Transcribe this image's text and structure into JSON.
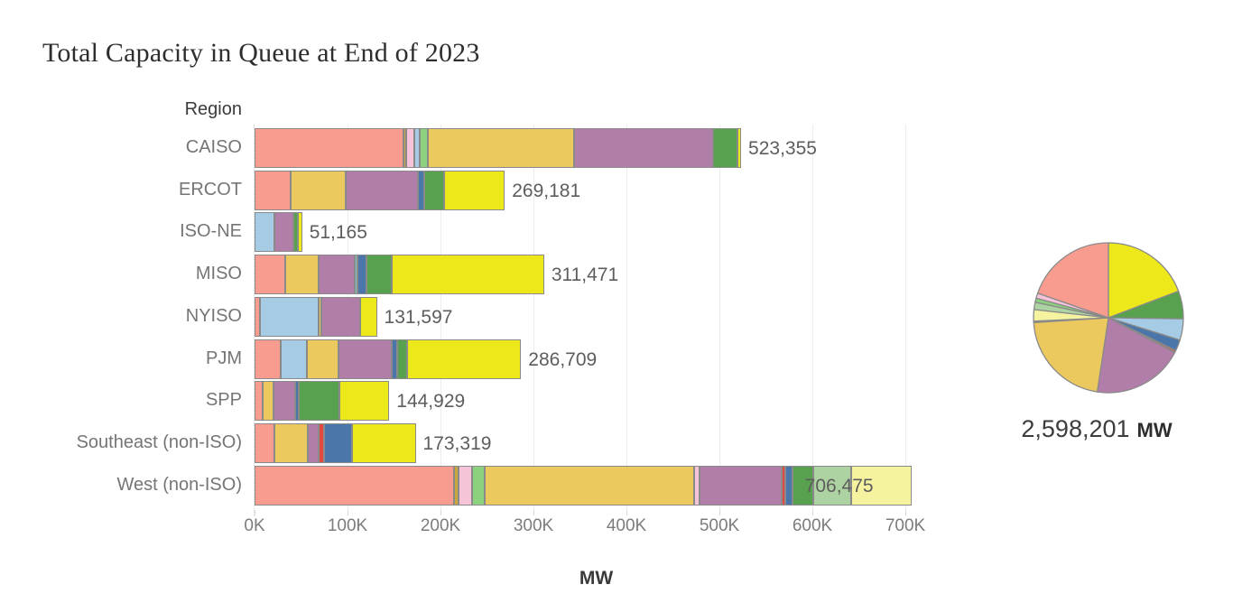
{
  "title": "Total Capacity in Queue at End of 2023",
  "region_header": "Region",
  "axis": {
    "label": "MW",
    "tick_labels": [
      "0K",
      "100K",
      "200K",
      "300K",
      "400K",
      "500K",
      "600K",
      "700K"
    ],
    "max": 700000
  },
  "pie_summary": {
    "label": "2,598,201",
    "unit": "MW",
    "total": 2598201
  },
  "colors": {
    "salmon": "#f99c90",
    "gold": "#ebc95f",
    "goldsliver": "#c9a73c",
    "pink": "#f5c4d9",
    "skyblue": "#a6cbe5",
    "lightgreen": "#8cd17d",
    "palegreen": "#aed3a2",
    "purple": "#b17da9",
    "teal": "#7fc8c3",
    "steelblue": "#4b76a9",
    "green": "#58a14e",
    "red": "#e1493e",
    "yellow": "#ede819",
    "paleyellow": "#f5f2a0",
    "border": "#8a8a8a"
  },
  "chart_data": {
    "type": "bar",
    "orientation": "horizontal",
    "title": "Total Capacity in Queue at End of 2023",
    "xlabel": "MW",
    "ylabel": "Region",
    "xlim": [
      0,
      700000
    ],
    "x_ticks": [
      "0K",
      "100K",
      "200K",
      "300K",
      "400K",
      "500K",
      "600K",
      "700K"
    ],
    "categories": [
      "CAISO",
      "ERCOT",
      "ISO-NE",
      "MISO",
      "NYISO",
      "PJM",
      "SPP",
      "Southeast (non-ISO)",
      "West (non-ISO)"
    ],
    "totals": [
      523355,
      269181,
      51165,
      311471,
      131597,
      286709,
      144929,
      173319,
      706475
    ],
    "total_labels": [
      "523,355",
      "269,181",
      "51,165",
      "311,471",
      "131,597",
      "286,709",
      "144,929",
      "173,319",
      "706,475"
    ],
    "regions": [
      {
        "name": "CAISO",
        "total": 523355,
        "label": "523,355",
        "value_inside": false,
        "segments": [
          [
            "salmon",
            160000
          ],
          [
            "goldsliver",
            3500
          ],
          [
            "pink",
            8000
          ],
          [
            "skyblue",
            6000
          ],
          [
            "lightgreen",
            9000
          ],
          [
            "gold",
            157000
          ],
          [
            "purple",
            150000
          ],
          [
            "green",
            26000
          ],
          [
            "yellow",
            3855
          ]
        ]
      },
      {
        "name": "ERCOT",
        "total": 269181,
        "label": "269,181",
        "value_inside": false,
        "segments": [
          [
            "salmon",
            39000
          ],
          [
            "gold",
            59000
          ],
          [
            "purple",
            78000
          ],
          [
            "steelblue",
            7000
          ],
          [
            "green",
            21000
          ],
          [
            "yellow",
            65181
          ]
        ]
      },
      {
        "name": "ISO-NE",
        "total": 51165,
        "label": "51,165",
        "value_inside": false,
        "segments": [
          [
            "skyblue",
            21600
          ],
          [
            "purple",
            19700
          ],
          [
            "green",
            4900
          ],
          [
            "yellow",
            4965
          ]
        ]
      },
      {
        "name": "MISO",
        "total": 311471,
        "label": "311,471",
        "value_inside": false,
        "segments": [
          [
            "salmon",
            33000
          ],
          [
            "gold",
            36000
          ],
          [
            "purple",
            39000
          ],
          [
            "teal",
            3000
          ],
          [
            "steelblue",
            9000
          ],
          [
            "green",
            28000
          ],
          [
            "yellow",
            163471
          ]
        ]
      },
      {
        "name": "NYISO",
        "total": 131597,
        "label": "131,597",
        "value_inside": false,
        "segments": [
          [
            "salmon",
            6000
          ],
          [
            "skyblue",
            63000
          ],
          [
            "gold",
            3000
          ],
          [
            "purple",
            42000
          ],
          [
            "yellow",
            17597
          ]
        ]
      },
      {
        "name": "PJM",
        "total": 286709,
        "label": "286,709",
        "value_inside": false,
        "segments": [
          [
            "salmon",
            28000
          ],
          [
            "skyblue",
            28000
          ],
          [
            "gold",
            34000
          ],
          [
            "purple",
            58000
          ],
          [
            "steelblue",
            5000
          ],
          [
            "green",
            11000
          ],
          [
            "yellow",
            122709
          ]
        ]
      },
      {
        "name": "SPP",
        "total": 144929,
        "label": "144,929",
        "value_inside": false,
        "segments": [
          [
            "salmon",
            9000
          ],
          [
            "gold",
            11000
          ],
          [
            "purple",
            24000
          ],
          [
            "steelblue",
            4000
          ],
          [
            "green",
            43000
          ],
          [
            "yellow",
            53929
          ]
        ]
      },
      {
        "name": "Southeast (non-ISO)",
        "total": 173319,
        "label": "173,319",
        "value_inside": false,
        "segments": [
          [
            "salmon",
            21000
          ],
          [
            "gold",
            36000
          ],
          [
            "purple",
            12000
          ],
          [
            "red",
            6000
          ],
          [
            "steelblue",
            30000
          ],
          [
            "yellow",
            68319
          ]
        ]
      },
      {
        "name": "West (non-ISO)",
        "total": 706475,
        "label": "706,475",
        "value_inside": true,
        "segments": [
          [
            "salmon",
            215000
          ],
          [
            "goldsliver",
            4000
          ],
          [
            "pink",
            15000
          ],
          [
            "lightgreen",
            14000
          ],
          [
            "gold",
            225000
          ],
          [
            "pink",
            6000
          ],
          [
            "purple",
            88000
          ],
          [
            "red",
            4000
          ],
          [
            "steelblue",
            8000
          ],
          [
            "green",
            22000
          ],
          [
            "palegreen",
            41000
          ],
          [
            "paleyellow",
            64475
          ]
        ]
      }
    ],
    "pie": {
      "type": "pie",
      "total": 2598201,
      "label": "2,598,201",
      "unit": "MW",
      "slice_order": [
        "yellow",
        "green",
        "skyblue",
        "steelblue",
        "red",
        "teal",
        "purple",
        "gold",
        "goldsliver",
        "paleyellow",
        "palegreen",
        "lightgreen",
        "pink",
        "salmon"
      ]
    }
  }
}
